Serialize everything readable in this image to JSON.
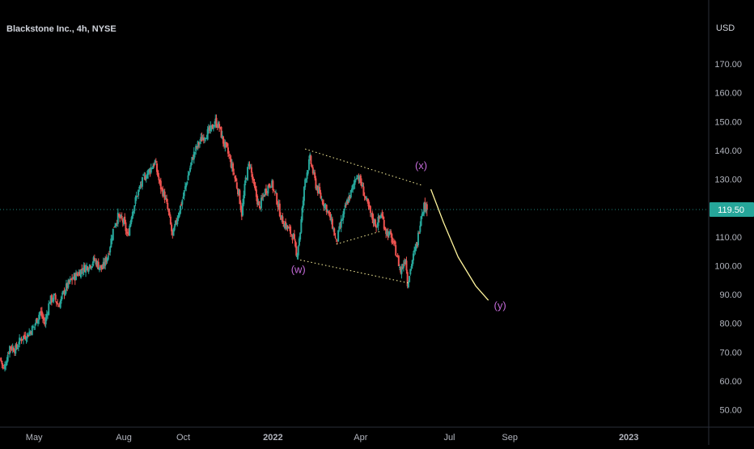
{
  "header": {
    "symbol_title": "Blackstone Inc., 4h, NYSE",
    "currency": "USD"
  },
  "colors": {
    "background": "#000000",
    "up": "#26a69a",
    "down": "#ef5350",
    "axis_text": "#b2b5be",
    "price_badge": "#26a69a",
    "wave_label": "#c36ad8",
    "projection": "#fff59d",
    "channel": "#fff59d"
  },
  "chart_data": {
    "type": "candlestick",
    "ylabel": "USD",
    "ylim": [
      44,
      186
    ],
    "y_ticks": [
      50,
      60,
      70,
      80,
      90,
      100,
      110,
      120,
      130,
      140,
      150,
      160,
      170
    ],
    "y_tick_labels": [
      "50.00",
      "60.00",
      "70.00",
      "80.00",
      "90.00",
      "100.00",
      "110.00",
      "120.00",
      "130.00",
      "140.00",
      "150.00",
      "160.00",
      "170.00"
    ],
    "x_range": [
      "2021-03-27",
      "2023-03-24"
    ],
    "x_ticks": [
      {
        "date": "2021-05-01",
        "label": "May"
      },
      {
        "date": "2021-08-01",
        "label": "Aug"
      },
      {
        "date": "2021-10-01",
        "label": "Oct"
      },
      {
        "date": "2022-01-01",
        "label": "2022"
      },
      {
        "date": "2022-04-01",
        "label": "Apr"
      },
      {
        "date": "2022-07-01",
        "label": "Jul"
      },
      {
        "date": "2022-09-01",
        "label": "Sep"
      },
      {
        "date": "2023-01-01",
        "label": "2023"
      }
    ],
    "last_price": 119.5,
    "last_price_label": "119.50",
    "close_path": [
      [
        "2021-03-27",
        68
      ],
      [
        "2021-03-31",
        64
      ],
      [
        "2021-04-06",
        72
      ],
      [
        "2021-04-12",
        71
      ],
      [
        "2021-04-18",
        75
      ],
      [
        "2021-04-24",
        76
      ],
      [
        "2021-05-01",
        79
      ],
      [
        "2021-05-07",
        84
      ],
      [
        "2021-05-12",
        80
      ],
      [
        "2021-05-17",
        88
      ],
      [
        "2021-05-22",
        89
      ],
      [
        "2021-05-26",
        86
      ],
      [
        "2021-06-02",
        92
      ],
      [
        "2021-06-08",
        95
      ],
      [
        "2021-06-14",
        97
      ],
      [
        "2021-06-20",
        99
      ],
      [
        "2021-06-26",
        100
      ],
      [
        "2021-07-02",
        102
      ],
      [
        "2021-07-06",
        100
      ],
      [
        "2021-07-10",
        99
      ],
      [
        "2021-07-16",
        104
      ],
      [
        "2021-07-22",
        114
      ],
      [
        "2021-07-26",
        117
      ],
      [
        "2021-08-01",
        115
      ],
      [
        "2021-08-05",
        110
      ],
      [
        "2021-08-09",
        118
      ],
      [
        "2021-08-15",
        125
      ],
      [
        "2021-08-21",
        130
      ],
      [
        "2021-08-27",
        133
      ],
      [
        "2021-09-02",
        136
      ],
      [
        "2021-09-07",
        128
      ],
      [
        "2021-09-12",
        124
      ],
      [
        "2021-09-16",
        118
      ],
      [
        "2021-09-20",
        110
      ],
      [
        "2021-09-25",
        117
      ],
      [
        "2021-10-01",
        124
      ],
      [
        "2021-10-05",
        130
      ],
      [
        "2021-10-11",
        138
      ],
      [
        "2021-10-16",
        142
      ],
      [
        "2021-10-22",
        145
      ],
      [
        "2021-10-29",
        147
      ],
      [
        "2021-11-03",
        150
      ],
      [
        "2021-11-07",
        148
      ],
      [
        "2021-11-11",
        143
      ],
      [
        "2021-11-15",
        140
      ],
      [
        "2021-11-21",
        133
      ],
      [
        "2021-11-27",
        125
      ],
      [
        "2021-11-30",
        118
      ],
      [
        "2021-12-04",
        130
      ],
      [
        "2021-12-08",
        136
      ],
      [
        "2021-12-12",
        128
      ],
      [
        "2021-12-18",
        120
      ],
      [
        "2021-12-24",
        126
      ],
      [
        "2021-12-30",
        129
      ],
      [
        "2022-01-04",
        124
      ],
      [
        "2022-01-10",
        116
      ],
      [
        "2022-01-16",
        113
      ],
      [
        "2022-01-22",
        110
      ],
      [
        "2022-01-25",
        103
      ],
      [
        "2022-01-29",
        112
      ],
      [
        "2022-02-03",
        130
      ],
      [
        "2022-02-08",
        137
      ],
      [
        "2022-02-14",
        128
      ],
      [
        "2022-02-20",
        123
      ],
      [
        "2022-02-25",
        120
      ],
      [
        "2022-03-03",
        114
      ],
      [
        "2022-03-07",
        108
      ],
      [
        "2022-03-12",
        115
      ],
      [
        "2022-03-18",
        122
      ],
      [
        "2022-03-23",
        126
      ],
      [
        "2022-03-28",
        132
      ],
      [
        "2022-04-02",
        128
      ],
      [
        "2022-04-07",
        122
      ],
      [
        "2022-04-12",
        117
      ],
      [
        "2022-04-17",
        114
      ],
      [
        "2022-04-22",
        118
      ],
      [
        "2022-04-27",
        112
      ],
      [
        "2022-05-02",
        110
      ],
      [
        "2022-05-07",
        105
      ],
      [
        "2022-05-12",
        98
      ],
      [
        "2022-05-17",
        103
      ],
      [
        "2022-05-19",
        94
      ],
      [
        "2022-05-24",
        102
      ],
      [
        "2022-05-29",
        108
      ],
      [
        "2022-06-02",
        118
      ],
      [
        "2022-06-05",
        121
      ],
      [
        "2022-06-08",
        119.5
      ]
    ],
    "projection": [
      [
        "2022-06-12",
        126.5
      ],
      [
        "2022-06-25",
        115
      ],
      [
        "2022-07-10",
        103
      ],
      [
        "2022-07-28",
        93
      ],
      [
        "2022-08-10",
        88
      ]
    ],
    "channel_lines": [
      {
        "from": [
          "2022-02-03",
          140.5
        ],
        "to": [
          "2022-06-02",
          128
        ]
      },
      {
        "from": [
          "2022-01-29",
          102
        ],
        "to": [
          "2022-05-20",
          94
        ]
      },
      {
        "from": [
          "2022-03-07",
          107.5
        ],
        "to": [
          "2022-04-22",
          112
        ]
      }
    ],
    "wave_labels": [
      {
        "text": "(w)",
        "date": "2022-01-27",
        "price": 97.5
      },
      {
        "text": "(x)",
        "date": "2022-06-02",
        "price": 133.5
      },
      {
        "text": "(y)",
        "date": "2022-08-22",
        "price": 85
      }
    ]
  }
}
